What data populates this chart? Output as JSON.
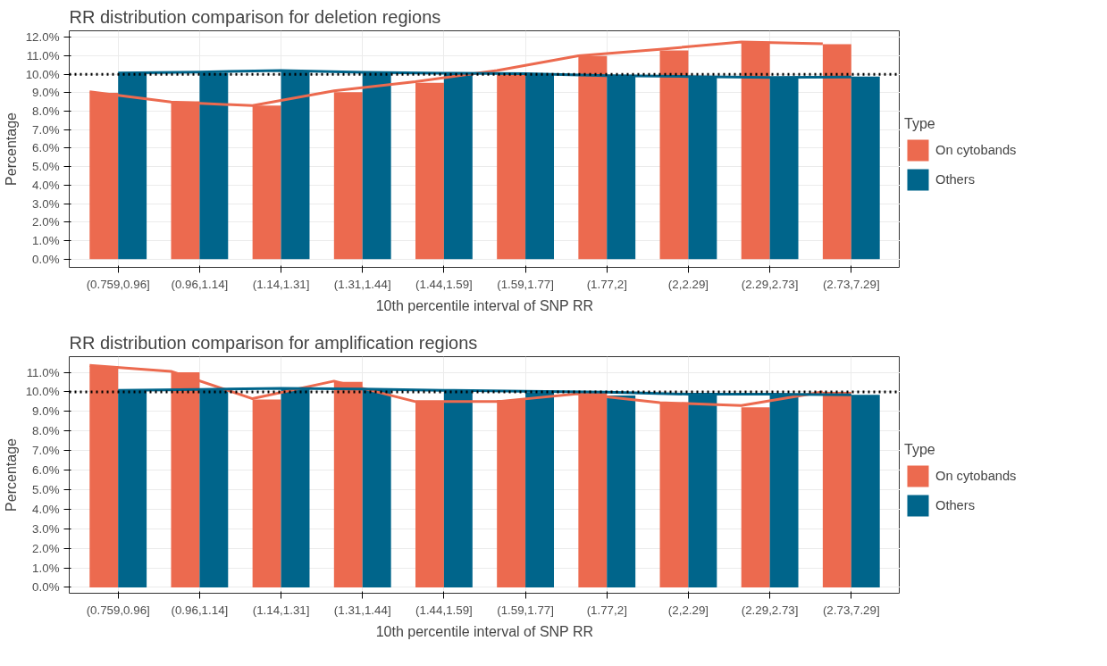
{
  "chart_data": [
    {
      "type": "bar",
      "title": "RR distribution comparison for deletion regions",
      "xlabel": "10th percentile interval of SNP RR",
      "ylabel": "Percentage",
      "legend_title": "Type",
      "legend": "right",
      "grid": true,
      "categories": [
        "(0.759,0.96]",
        "(0.96,1.14]",
        "(1.14,1.31]",
        "(1.31,1.44]",
        "(1.44,1.59]",
        "(1.59,1.77]",
        "(1.77,2]",
        "(2,2.29]",
        "(2.29,2.73]",
        "(2.73,7.29]"
      ],
      "series": [
        {
          "name": "On cytobands",
          "color": "#ec6a4f",
          "values": [
            8.99,
            8.54,
            8.3,
            9.03,
            9.54,
            10.0,
            10.98,
            11.29,
            11.76,
            11.62
          ]
        },
        {
          "name": "Others",
          "color": "#00658b",
          "values": [
            10.05,
            10.08,
            10.18,
            10.08,
            10.03,
            10.03,
            9.91,
            9.88,
            9.8,
            9.88
          ]
        },
        {
          "type": "line",
          "color": "#ec6a4f",
          "values": [
            9.05,
            8.5,
            8.3,
            9.1,
            9.6,
            10.2,
            11.0,
            11.35,
            11.75,
            11.65
          ]
        },
        {
          "type": "line",
          "color": "#00658b",
          "values": [
            10.07,
            10.12,
            10.2,
            10.1,
            10.06,
            10.03,
            9.92,
            9.88,
            9.83,
            9.85
          ]
        }
      ],
      "ylim": [
        -0.45,
        12.35
      ],
      "yticks": [
        {
          "value": 0,
          "label": "0.0%"
        },
        {
          "value": 1,
          "label": "1.0%"
        },
        {
          "value": 2,
          "label": "2.0%"
        },
        {
          "value": 3,
          "label": "3.0%"
        },
        {
          "value": 4,
          "label": "4.0%"
        },
        {
          "value": 5,
          "label": "5.0%"
        },
        {
          "value": 6,
          "label": "6.0%"
        },
        {
          "value": 7,
          "label": "7.0%"
        },
        {
          "value": 8,
          "label": "8.0%"
        },
        {
          "value": 9,
          "label": "9.0%"
        },
        {
          "value": 10,
          "label": "10.0%"
        },
        {
          "value": 11,
          "label": "11.0%"
        },
        {
          "value": 12,
          "label": "12.0%"
        }
      ],
      "ref_lines": [
        {
          "axis": "y",
          "value": 10,
          "color": "#000000",
          "line_style": "dotted"
        }
      ]
    },
    {
      "type": "bar",
      "title": "RR distribution comparison for amplification regions",
      "xlabel": "10th percentile interval of SNP RR",
      "ylabel": "Percentage",
      "legend_title": "Type",
      "legend": "right",
      "grid": true,
      "categories": [
        "(0.759,0.96]",
        "(0.96,1.14]",
        "(1.14,1.31]",
        "(1.31,1.44]",
        "(1.44,1.59]",
        "(1.59,1.77]",
        "(1.77,2]",
        "(2,2.29]",
        "(2.29,2.73]",
        "(2.73,7.29]"
      ],
      "series": [
        {
          "name": "On cytobands",
          "color": "#ec6a4f",
          "values": [
            11.32,
            11.0,
            9.61,
            10.51,
            9.52,
            9.58,
            10.03,
            9.46,
            9.21,
            10.0
          ]
        },
        {
          "name": "Others",
          "color": "#00658b",
          "values": [
            10.07,
            10.14,
            10.19,
            10.14,
            10.05,
            9.96,
            9.81,
            9.88,
            9.88,
            9.85
          ]
        },
        {
          "type": "line",
          "color": "#ec6a4f",
          "values": [
            11.35,
            11.05,
            9.65,
            10.55,
            9.5,
            9.5,
            9.9,
            9.45,
            9.3,
            10.0
          ]
        },
        {
          "type": "line",
          "color": "#00658b",
          "values": [
            10.08,
            10.12,
            10.18,
            10.14,
            10.08,
            10.03,
            9.98,
            9.88,
            9.88,
            9.85
          ]
        }
      ],
      "ylim": [
        -0.3,
        11.8
      ],
      "yticks": [
        {
          "value": 0,
          "label": "0.0%"
        },
        {
          "value": 1,
          "label": "1.0%"
        },
        {
          "value": 2,
          "label": "2.0%"
        },
        {
          "value": 3,
          "label": "3.0%"
        },
        {
          "value": 4,
          "label": "4.0%"
        },
        {
          "value": 5,
          "label": "5.0%"
        },
        {
          "value": 6,
          "label": "6.0%"
        },
        {
          "value": 7,
          "label": "7.0%"
        },
        {
          "value": 8,
          "label": "8.0%"
        },
        {
          "value": 9,
          "label": "9.0%"
        },
        {
          "value": 10,
          "label": "10.0%"
        },
        {
          "value": 11,
          "label": "11.0%"
        }
      ],
      "ref_lines": [
        {
          "axis": "y",
          "value": 10,
          "color": "#000000",
          "line_style": "dotted"
        }
      ]
    }
  ]
}
